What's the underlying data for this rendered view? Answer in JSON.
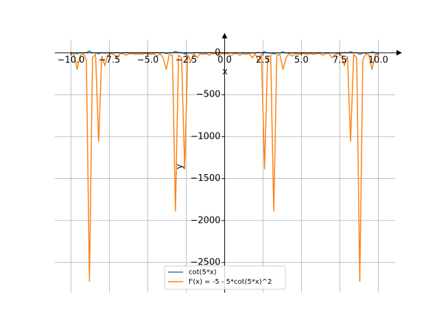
{
  "chart_data": {
    "type": "line",
    "xlabel": "x",
    "ylabel": "y",
    "x": [
      -10,
      -9.8,
      -9.6,
      -9.4,
      -9.2,
      -9.0,
      -8.8,
      -8.6,
      -8.4,
      -8.2,
      -8.0,
      -7.8,
      -7.6,
      -7.4,
      -7.2,
      -7.0,
      -6.8,
      -6.6,
      -6.4,
      -6.2,
      -6.0,
      -5.8,
      -5.6,
      -5.4,
      -5.2,
      -5.0,
      -4.8,
      -4.6,
      -4.4,
      -4.2,
      -4.0,
      -3.8,
      -3.6,
      -3.4,
      -3.2,
      -3.0,
      -2.8,
      -2.6,
      -2.4,
      -2.2,
      -2.0,
      -1.8,
      -1.6,
      -1.4,
      -1.2,
      -1.0,
      -0.8,
      -0.6,
      -0.4,
      -0.2,
      0.2,
      0.4,
      0.6,
      0.8,
      1.0,
      1.2,
      1.4,
      1.6,
      1.8,
      2.0,
      2.2,
      2.4,
      2.6,
      2.8,
      3.0,
      3.2,
      3.4,
      3.6,
      3.8,
      4.0,
      4.2,
      4.4,
      4.6,
      4.8,
      5.0,
      5.2,
      5.4,
      5.6,
      5.8,
      6.0,
      6.2,
      6.4,
      6.6,
      6.8,
      7.0,
      7.2,
      7.4,
      7.6,
      7.8,
      8.0,
      8.2,
      8.4,
      8.6,
      8.8,
      9.0,
      9.2,
      9.4,
      9.6,
      9.8,
      10
    ],
    "series": [
      {
        "name": "cot(5*x)",
        "color": "#1f77b4",
        "values": [
          4,
          -2,
          -10,
          2,
          -1,
          3,
          20,
          -3,
          1,
          -12,
          2,
          -5,
          2,
          0,
          1,
          3,
          0,
          0,
          2,
          0,
          0,
          1,
          0,
          1,
          0,
          0,
          1,
          0,
          2,
          0,
          3,
          -10,
          1,
          2,
          15,
          2,
          3,
          -12,
          1,
          -5,
          0,
          3,
          0,
          1,
          0,
          2,
          0,
          0,
          2,
          0,
          0,
          -2,
          0,
          0,
          -2,
          0,
          -1,
          0,
          -3,
          0,
          5,
          -1,
          12,
          -3,
          -2,
          -15,
          -2,
          -1,
          10,
          -3,
          0,
          -2,
          0,
          -1,
          0,
          0,
          -1,
          0,
          -1,
          0,
          0,
          -2,
          0,
          0,
          -3,
          -1,
          0,
          -2,
          5,
          -2,
          12,
          -1,
          3,
          -20,
          -3,
          1,
          -2,
          10,
          2,
          -4
        ]
      },
      {
        "name": "f'(x) = -5 - 5*cot(5*x)^2",
        "color": "#ff7f0e",
        "values": [
          -10,
          -20,
          -200,
          -30,
          -10,
          -80,
          -2730,
          -60,
          -20,
          -1060,
          -40,
          -150,
          -30,
          -10,
          -20,
          -60,
          -10,
          -10,
          -30,
          -10,
          -10,
          -20,
          -10,
          -20,
          -10,
          -10,
          -20,
          -10,
          -40,
          -10,
          -60,
          -200,
          -20,
          -30,
          -1890,
          -30,
          -60,
          -1390,
          -20,
          -100,
          -10,
          -60,
          -10,
          -20,
          -10,
          -30,
          -10,
          -10,
          -40,
          -10,
          -10,
          -40,
          -10,
          -10,
          -30,
          -10,
          -20,
          -10,
          -60,
          -10,
          -100,
          -20,
          -1390,
          -60,
          -30,
          -1890,
          -30,
          -20,
          -200,
          -60,
          -10,
          -40,
          -10,
          -20,
          -10,
          -10,
          -20,
          -10,
          -20,
          -10,
          -10,
          -30,
          -10,
          -10,
          -60,
          -20,
          -10,
          -30,
          -150,
          -40,
          -1060,
          -20,
          -60,
          -2730,
          -80,
          -10,
          -30,
          -200,
          -20,
          -10
        ]
      }
    ],
    "xlim": [
      -11.05,
      11.1
    ],
    "ylim": [
      -2860,
      237
    ],
    "xticks": [
      {
        "value": -10,
        "label": "−10.0"
      },
      {
        "value": -7.5,
        "label": "−7.5"
      },
      {
        "value": -5,
        "label": "−5.0"
      },
      {
        "value": -2.5,
        "label": "−2.5"
      },
      {
        "value": 0,
        "label": "0.0"
      },
      {
        "value": 2.5,
        "label": "2.5"
      },
      {
        "value": 5,
        "label": "5.0"
      },
      {
        "value": 7.5,
        "label": "7.5"
      },
      {
        "value": 10,
        "label": "10.0"
      }
    ],
    "yticks": [
      0,
      {
        "value": -500,
        "label": "−500"
      },
      {
        "value": -1000,
        "label": "−1000"
      },
      {
        "value": -1500,
        "label": "−1500"
      },
      {
        "value": -2000,
        "label": "−2000"
      },
      {
        "value": -2500,
        "label": "−2500"
      }
    ],
    "grid": true,
    "legend": "lower center"
  }
}
